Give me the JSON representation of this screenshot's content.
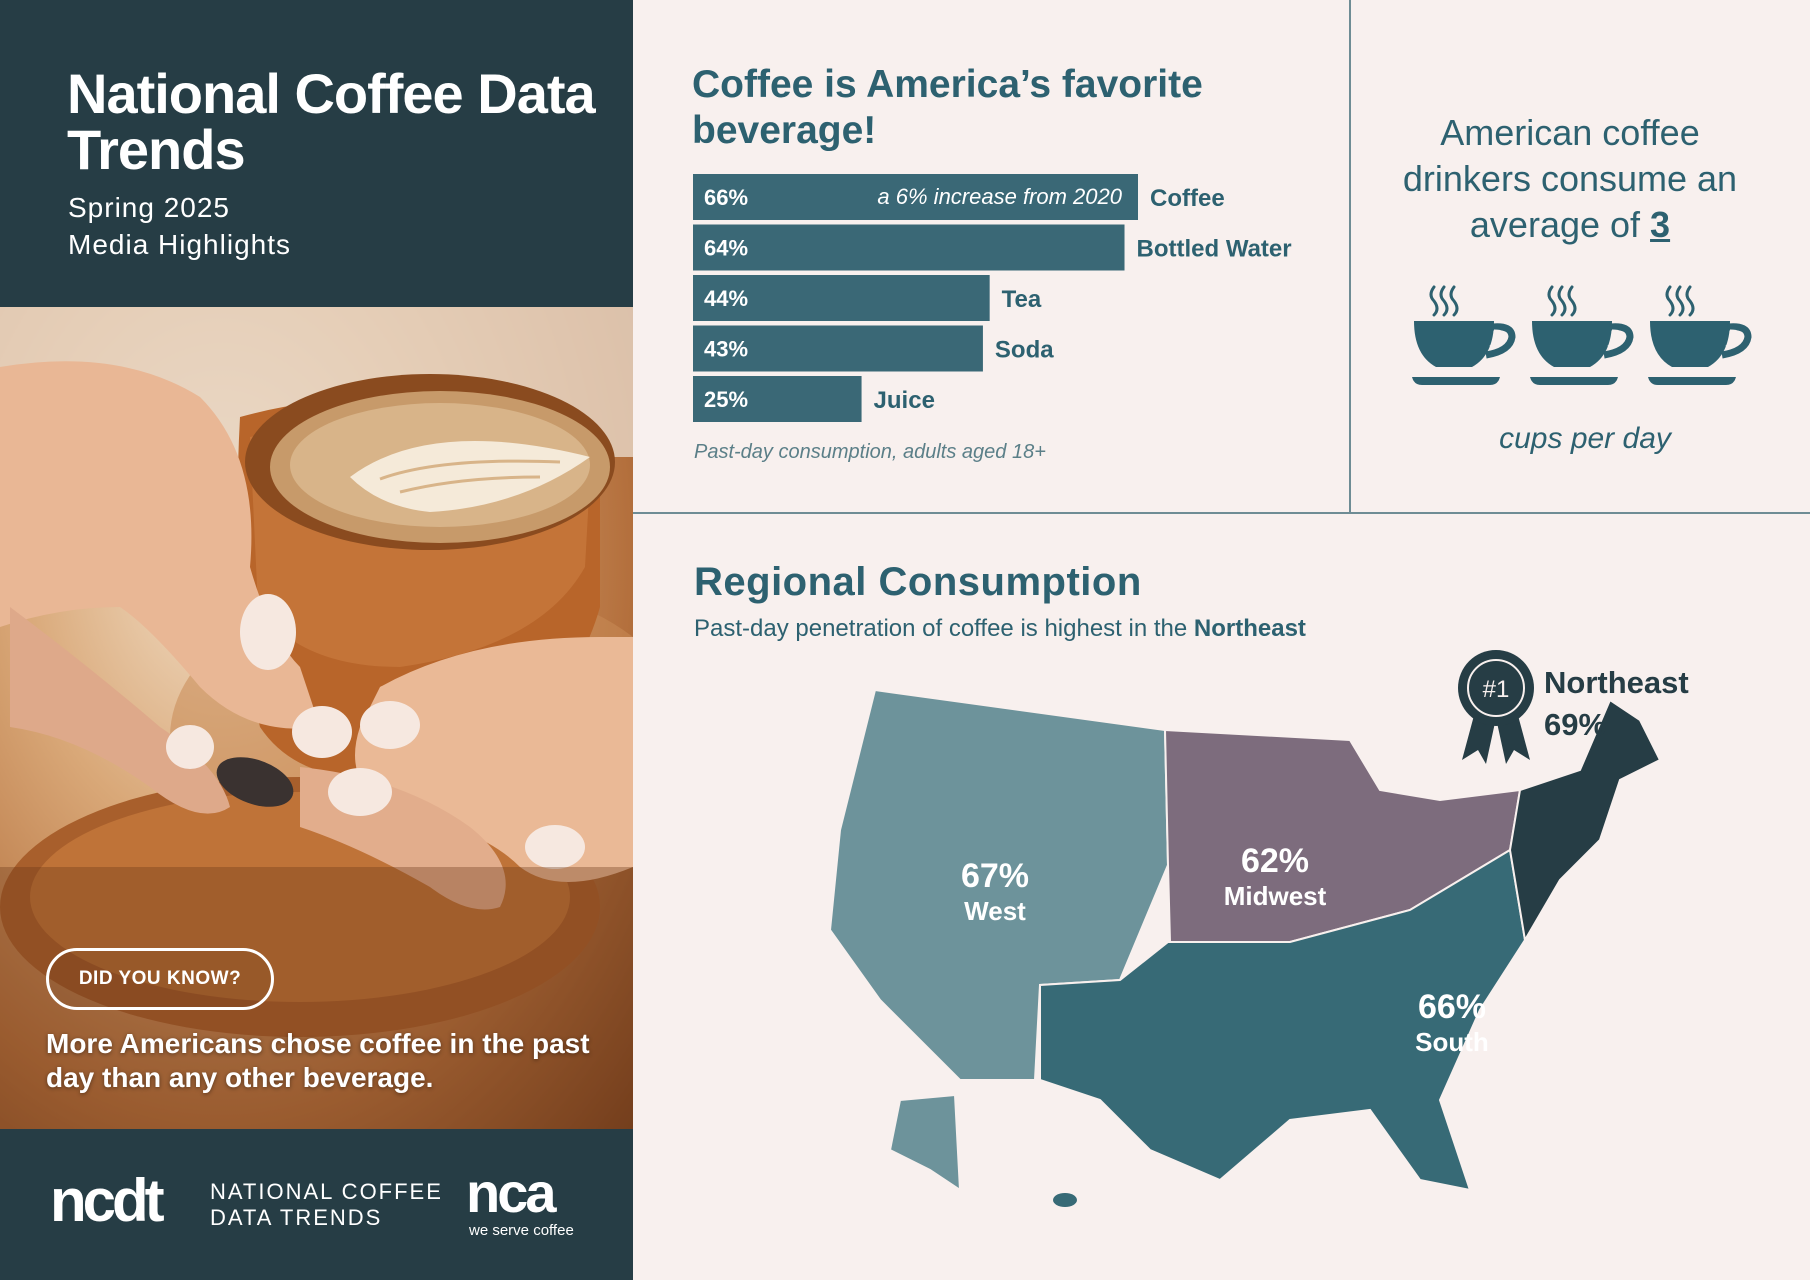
{
  "sidebar": {
    "title": "National Coffee Data Trends",
    "subtitle_1": "Spring 2025",
    "subtitle_2": "Media Highlights",
    "did_you_know": "DID YOU KNOW?",
    "fact": "More Americans chose coffee in the past day than any other beverage.",
    "footer": {
      "ncdt_mark": "ncdt",
      "ncdt_line1": "NATIONAL COFFEE",
      "ncdt_line2": "DATA TRENDS",
      "nca_mark": "nca",
      "nca_tagline": "we serve coffee"
    }
  },
  "beverage_section": {
    "title": "Coffee is America’s favorite beverage!",
    "footnote": "Past-day consumption, adults aged 18+"
  },
  "cups_section": {
    "text": "American coffee drinkers consume an average of",
    "value": "3",
    "unit_label": "cups per day"
  },
  "regional_section": {
    "title": "Regional Consumption",
    "subtitle_prefix": "Past-day penetration of coffee is highest in the",
    "subtitle_highlight": "Northeast",
    "badge": "#1"
  },
  "colors": {
    "dark": "#263d45",
    "teal": "#2d6170",
    "bar": "#3a6876",
    "background": "#f8f0ee",
    "west": "#6d939b",
    "midwest": "#7d6c7d",
    "south": "#376a76",
    "northeast": "#263d45"
  },
  "chart_data": [
    {
      "type": "bar",
      "orientation": "horizontal",
      "title": "Coffee is America’s favorite beverage!",
      "categories": [
        "Coffee",
        "Bottled Water",
        "Tea",
        "Soda",
        "Juice"
      ],
      "values": [
        66,
        64,
        44,
        43,
        25
      ],
      "value_labels": [
        "66%",
        "64%",
        "44%",
        "43%",
        "25%"
      ],
      "annotations": [
        {
          "category": "Coffee",
          "text": "a 6% increase from 2020"
        }
      ],
      "xlim": [
        0,
        66
      ],
      "grid": false
    },
    {
      "type": "map",
      "title": "Regional Consumption",
      "regions": [
        {
          "name": "West",
          "value": 67,
          "label": "67%"
        },
        {
          "name": "Midwest",
          "value": 62,
          "label": "62%"
        },
        {
          "name": "South",
          "value": 66,
          "label": "66%"
        },
        {
          "name": "Northeast",
          "value": 69,
          "label": "69%",
          "rank": "#1"
        }
      ]
    }
  ]
}
